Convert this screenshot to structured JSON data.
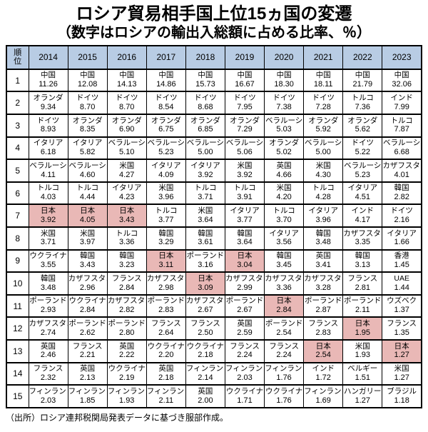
{
  "title": "ロシア貿易相手国上位15ヵ国の変遷",
  "subtitle": "（数字はロシアの輸出入総額に占める比率、％）",
  "source": "（出所）ロシア連邦税関局発表データに基づき服部作成。",
  "colors": {
    "header_bg": "#B8CCE4",
    "japan_highlight_bg": "#E9B8B6",
    "border": "#000000",
    "text": "#000000"
  },
  "chart_data": {
    "type": "table",
    "rank_header": "順位",
    "years": [
      "2014",
      "2015",
      "2016",
      "2017",
      "2018",
      "2019",
      "2020",
      "2021",
      "2022",
      "2023"
    ],
    "unit": "%",
    "highlighted_country": "日本",
    "rows": [
      {
        "rank": "1",
        "cells": [
          {
            "country": "中国",
            "share": "11.26"
          },
          {
            "country": "中国",
            "share": "12.08"
          },
          {
            "country": "中国",
            "share": "14.13"
          },
          {
            "country": "中国",
            "share": "14.86"
          },
          {
            "country": "中国",
            "share": "15.73"
          },
          {
            "country": "中国",
            "share": "16.67"
          },
          {
            "country": "中国",
            "share": "18.30"
          },
          {
            "country": "中国",
            "share": "18.11"
          },
          {
            "country": "中国",
            "share": "21.79"
          },
          {
            "country": "中国",
            "share": "32.06"
          }
        ]
      },
      {
        "rank": "2",
        "cells": [
          {
            "country": "オランダ",
            "share": "9.34"
          },
          {
            "country": "ドイツ",
            "share": "8.70"
          },
          {
            "country": "ドイツ",
            "share": "8.70"
          },
          {
            "country": "ドイツ",
            "share": "8.54"
          },
          {
            "country": "ドイツ",
            "share": "8.68"
          },
          {
            "country": "ドイツ",
            "share": "7.95"
          },
          {
            "country": "ドイツ",
            "share": "7.38"
          },
          {
            "country": "ドイツ",
            "share": "7.28"
          },
          {
            "country": "トルコ",
            "share": "7.36"
          },
          {
            "country": "インド",
            "share": "7.99"
          }
        ]
      },
      {
        "rank": "3",
        "cells": [
          {
            "country": "ドイツ",
            "share": "8.93"
          },
          {
            "country": "オランダ",
            "share": "8.35"
          },
          {
            "country": "オランダ",
            "share": "6.90"
          },
          {
            "country": "オランダ",
            "share": "6.75"
          },
          {
            "country": "オランダ",
            "share": "6.85"
          },
          {
            "country": "オランダ",
            "share": "7.29"
          },
          {
            "country": "ベラルーシ",
            "share": "5.03"
          },
          {
            "country": "オランダ",
            "share": "5.92"
          },
          {
            "country": "オランダ",
            "share": "5.62"
          },
          {
            "country": "トルコ",
            "share": "7.87"
          }
        ]
      },
      {
        "rank": "4",
        "cells": [
          {
            "country": "イタリア",
            "share": "6.18"
          },
          {
            "country": "イタリア",
            "share": "5.82"
          },
          {
            "country": "ベラルーシ",
            "share": "5.10"
          },
          {
            "country": "ベラルーシ",
            "share": "5.23"
          },
          {
            "country": "ベラルーシ",
            "share": "5.00"
          },
          {
            "country": "ベラルーシ",
            "share": "5.06"
          },
          {
            "country": "オランダ",
            "share": "5.02"
          },
          {
            "country": "ベラルーシ",
            "share": "5.00"
          },
          {
            "country": "ドイツ",
            "share": "5.22"
          },
          {
            "country": "ベラルーシ",
            "share": "6.68"
          }
        ]
      },
      {
        "rank": "5",
        "cells": [
          {
            "country": "ベラルーシ",
            "share": "4.11"
          },
          {
            "country": "ベラルーシ",
            "share": "4.60"
          },
          {
            "country": "米国",
            "share": "4.27"
          },
          {
            "country": "イタリア",
            "share": "4.09"
          },
          {
            "country": "イタリア",
            "share": "3.92"
          },
          {
            "country": "米国",
            "share": "3.92"
          },
          {
            "country": "英国",
            "share": "4.66"
          },
          {
            "country": "米国",
            "share": "4.30"
          },
          {
            "country": "ベラルーシ",
            "share": "5.23"
          },
          {
            "country": "カザフスタン",
            "share": "4.01"
          }
        ]
      },
      {
        "rank": "6",
        "cells": [
          {
            "country": "トルコ",
            "share": "4.03"
          },
          {
            "country": "トルコ",
            "share": "4.44"
          },
          {
            "country": "イタリア",
            "share": "4.23"
          },
          {
            "country": "米国",
            "share": "3.96"
          },
          {
            "country": "トルコ",
            "share": "3.71"
          },
          {
            "country": "トルコ",
            "share": "3.91"
          },
          {
            "country": "米国",
            "share": "4.20"
          },
          {
            "country": "トルコ",
            "share": "4.28"
          },
          {
            "country": "イタリア",
            "share": "4.51"
          },
          {
            "country": "韓国",
            "share": "2.82"
          }
        ]
      },
      {
        "rank": "7",
        "cells": [
          {
            "country": "日本",
            "share": "3.92",
            "highlight": true
          },
          {
            "country": "日本",
            "share": "4.05",
            "highlight": true
          },
          {
            "country": "日本",
            "share": "3.43",
            "highlight": true
          },
          {
            "country": "トルコ",
            "share": "3.77"
          },
          {
            "country": "米国",
            "share": "3.64"
          },
          {
            "country": "イタリア",
            "share": "3.77"
          },
          {
            "country": "トルコ",
            "share": "3.70"
          },
          {
            "country": "イタリア",
            "share": "3.96"
          },
          {
            "country": "インド",
            "share": "4.17"
          },
          {
            "country": "ドイツ",
            "share": "2.16"
          }
        ]
      },
      {
        "rank": "8",
        "cells": [
          {
            "country": "米国",
            "share": "3.71"
          },
          {
            "country": "米国",
            "share": "3.97"
          },
          {
            "country": "トルコ",
            "share": "3.36"
          },
          {
            "country": "韓国",
            "share": "3.29"
          },
          {
            "country": "韓国",
            "share": "3.61"
          },
          {
            "country": "韓国",
            "share": "3.64"
          },
          {
            "country": "イタリア",
            "share": "3.56"
          },
          {
            "country": "韓国",
            "share": "3.48"
          },
          {
            "country": "カザフスタン",
            "share": "3.35"
          },
          {
            "country": "イタリア",
            "share": "1.66"
          }
        ]
      },
      {
        "rank": "9",
        "cells": [
          {
            "country": "ウクライナ",
            "share": "3.55"
          },
          {
            "country": "韓国",
            "share": "3.43"
          },
          {
            "country": "韓国",
            "share": "3.23"
          },
          {
            "country": "日本",
            "share": "3.11",
            "highlight": true
          },
          {
            "country": "ポーランド",
            "share": "3.16"
          },
          {
            "country": "日本",
            "share": "3.04",
            "highlight": true
          },
          {
            "country": "韓国",
            "share": "3.45"
          },
          {
            "country": "英国",
            "share": "3.41"
          },
          {
            "country": "韓国",
            "share": "3.13"
          },
          {
            "country": "香港",
            "share": "1.45"
          }
        ]
      },
      {
        "rank": "10",
        "cells": [
          {
            "country": "韓国",
            "share": "3.48"
          },
          {
            "country": "カザフスタン",
            "share": "2.96"
          },
          {
            "country": "フランス",
            "share": "2.84"
          },
          {
            "country": "カザフスタン",
            "share": "2.98"
          },
          {
            "country": "日本",
            "share": "3.09",
            "highlight": true
          },
          {
            "country": "カザフスタン",
            "share": "2.99"
          },
          {
            "country": "カザフスタン",
            "share": "3.36"
          },
          {
            "country": "カザフスタン",
            "share": "3.28"
          },
          {
            "country": "フランス",
            "share": "2.81"
          },
          {
            "country": "UAE",
            "share": "1.44"
          }
        ]
      },
      {
        "rank": "11",
        "cells": [
          {
            "country": "ポーランド",
            "share": "2.93"
          },
          {
            "country": "ウクライナ",
            "share": "2.84"
          },
          {
            "country": "カザフスタン",
            "share": "2.82"
          },
          {
            "country": "ポーランド",
            "share": "2.83"
          },
          {
            "country": "カザフスタン",
            "share": "2.67"
          },
          {
            "country": "ポーランド",
            "share": "2.67"
          },
          {
            "country": "日本",
            "share": "2.84",
            "highlight": true
          },
          {
            "country": "ポーランド",
            "share": "2.87"
          },
          {
            "country": "ポーランド",
            "share": "2.11"
          },
          {
            "country": "ウズベク",
            "share": "1.37"
          }
        ]
      },
      {
        "rank": "12",
        "cells": [
          {
            "country": "カザフスタン",
            "share": "2.74"
          },
          {
            "country": "ポーランド",
            "share": "2.62"
          },
          {
            "country": "ポーランド",
            "share": "2.80"
          },
          {
            "country": "フランス",
            "share": "2.64"
          },
          {
            "country": "フランス",
            "share": "2.50"
          },
          {
            "country": "英国",
            "share": "2.59"
          },
          {
            "country": "ポーランド",
            "share": "2.54"
          },
          {
            "country": "フランス",
            "share": "2.83"
          },
          {
            "country": "日本",
            "share": "1.95",
            "highlight": true
          },
          {
            "country": "フランス",
            "share": "1.35"
          }
        ]
      },
      {
        "rank": "13",
        "cells": [
          {
            "country": "英国",
            "share": "2.46"
          },
          {
            "country": "フランス",
            "share": "2.21"
          },
          {
            "country": "英国",
            "share": "2.22"
          },
          {
            "country": "ウクライナ",
            "share": "2.20"
          },
          {
            "country": "ウクライナ",
            "share": "2.18"
          },
          {
            "country": "フランス",
            "share": "2.24"
          },
          {
            "country": "フランス",
            "share": "2.24"
          },
          {
            "country": "日本",
            "share": "2.54",
            "highlight": true
          },
          {
            "country": "米国",
            "share": "1.93"
          },
          {
            "country": "日本",
            "share": "1.27",
            "highlight": true
          }
        ]
      },
      {
        "rank": "14",
        "cells": [
          {
            "country": "フランス",
            "share": "2.32"
          },
          {
            "country": "英国",
            "share": "2.13"
          },
          {
            "country": "ウクライナ",
            "share": "2.19"
          },
          {
            "country": "英国",
            "share": "2.18"
          },
          {
            "country": "フィンランド",
            "share": "2.14"
          },
          {
            "country": "フィンランド",
            "share": "2.03"
          },
          {
            "country": "フィンランド",
            "share": "1.76"
          },
          {
            "country": "インド",
            "share": "1.72"
          },
          {
            "country": "ベルギー",
            "share": "1.51"
          },
          {
            "country": "米国",
            "share": "1.27"
          }
        ]
      },
      {
        "rank": "15",
        "cells": [
          {
            "country": "フィンランド",
            "share": "2.03"
          },
          {
            "country": "フィンランド",
            "share": "1.85"
          },
          {
            "country": "フィンランド",
            "share": "1.93"
          },
          {
            "country": "フィンランド",
            "share": "2.11"
          },
          {
            "country": "英国",
            "share": "2.00"
          },
          {
            "country": "ウクライナ",
            "share": "1.71"
          },
          {
            "country": "ウクライナ",
            "share": "1.76"
          },
          {
            "country": "フィンランド",
            "share": "1.69"
          },
          {
            "country": "ハンガリー",
            "share": "1.27"
          },
          {
            "country": "ブラジル",
            "share": "1.18"
          }
        ]
      }
    ]
  }
}
